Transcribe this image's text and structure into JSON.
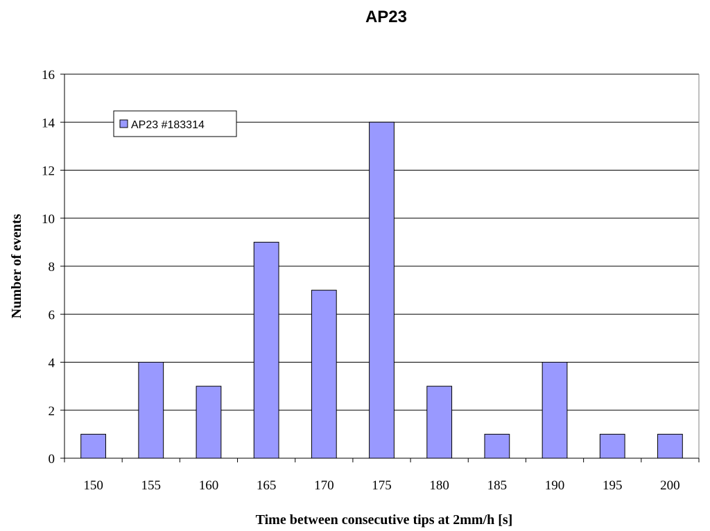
{
  "chart_data": {
    "type": "bar",
    "title": "AP23",
    "xlabel": "Time between consecutive tips at 2mm/h [s]",
    "ylabel": "Number of events",
    "categories": [
      "150",
      "155",
      "160",
      "165",
      "170",
      "175",
      "180",
      "185",
      "190",
      "195",
      "200"
    ],
    "series": [
      {
        "name": "AP23 #183314",
        "values": [
          1,
          4,
          3,
          9,
          7,
          14,
          3,
          1,
          4,
          1,
          1
        ],
        "color": "#9999ff"
      }
    ],
    "ylim": [
      0,
      16
    ],
    "yticks": [
      0,
      2,
      4,
      6,
      8,
      10,
      12,
      14,
      16
    ],
    "grid": true,
    "legend": "top-left inside plot"
  }
}
